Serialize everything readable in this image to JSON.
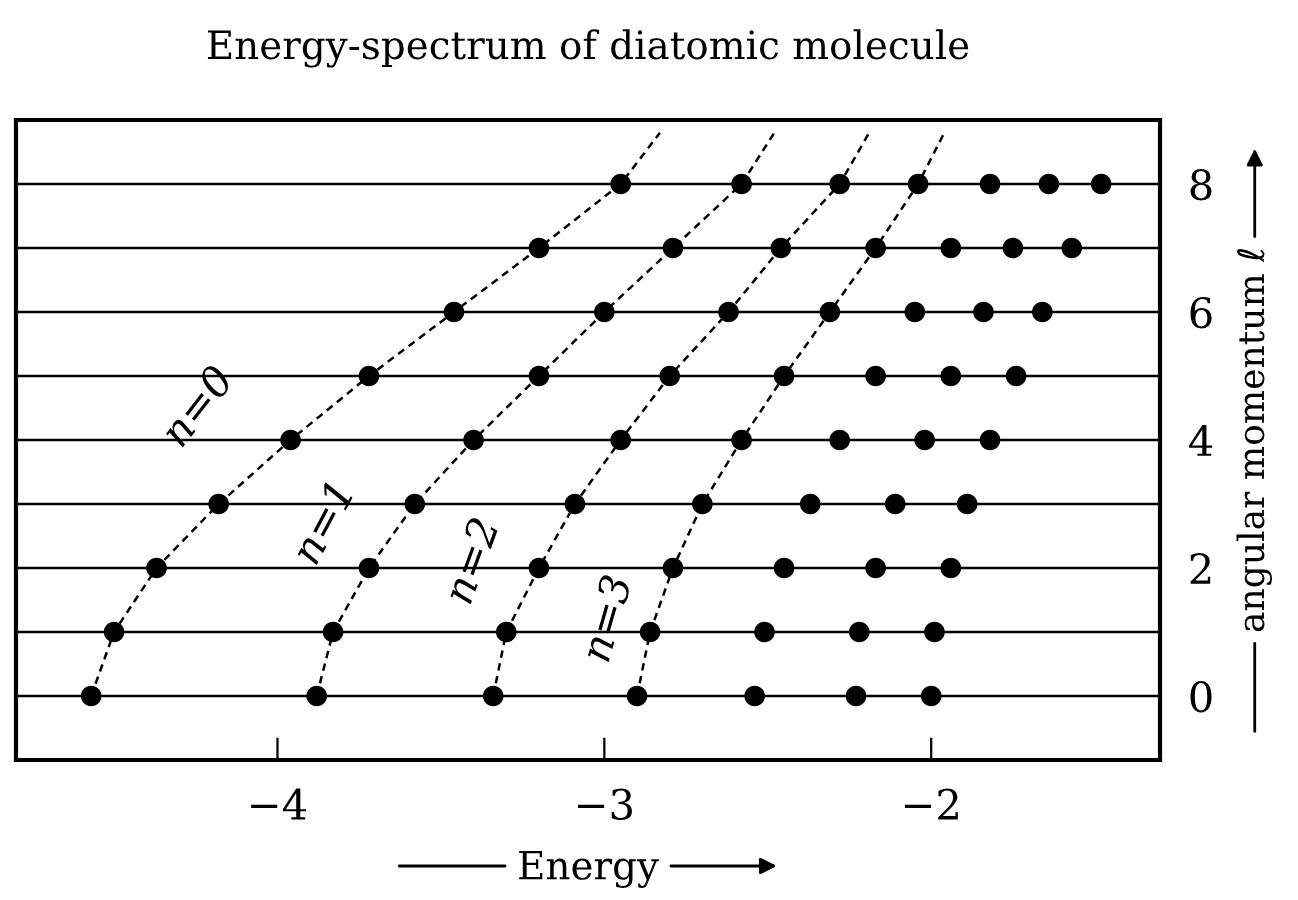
{
  "chart_data": {
    "type": "scatter",
    "title": "Energy-spectrum of diatomic molecule",
    "xlabel": "Energy",
    "ylabel": "angular momentum ℓ",
    "xlim": [
      -4.8,
      -1.3
    ],
    "ylim": [
      -1,
      9
    ],
    "xticks": [
      -4,
      -3,
      -2
    ],
    "yticks": [
      0,
      {
        "value": 1,
        "label": null
      },
      2,
      {
        "value": 3,
        "label": null
      },
      4,
      {
        "value": 5,
        "label": null
      },
      6,
      {
        "value": 7,
        "label": null
      },
      8
    ],
    "grid": "y",
    "legend": false,
    "series": [
      {
        "color": "#000000",
        "marker": "circle",
        "x": [
          -4.57,
          -3.88,
          -3.34,
          -2.9,
          -2.54,
          -2.23,
          -2.0,
          -4.5,
          -3.83,
          -3.3,
          -2.86,
          -2.51,
          -2.22,
          -1.99,
          -4.37,
          -3.72,
          -3.2,
          -2.79,
          -2.45,
          -2.17,
          -1.94,
          -4.18,
          -3.58,
          -3.09,
          -2.7,
          -2.37,
          -2.11,
          -1.89,
          -3.96,
          -3.4,
          -2.95,
          -2.58,
          -2.28,
          -2.02,
          -1.82,
          -3.72,
          -3.2,
          -2.8,
          -2.45,
          -2.17,
          -1.94,
          -1.74,
          -3.46,
          -3.0,
          -2.62,
          -2.31,
          -2.05,
          -1.84,
          -1.66,
          -3.2,
          -2.79,
          -2.46,
          -2.17,
          -1.94,
          -1.75,
          -1.57,
          -2.95,
          -2.58,
          -2.28,
          -2.04,
          -1.82,
          -1.64,
          -1.48
        ],
        "values": [
          0,
          0,
          0,
          0,
          0,
          0,
          0,
          1,
          1,
          1,
          1,
          1,
          1,
          1,
          2,
          2,
          2,
          2,
          2,
          2,
          2,
          3,
          3,
          3,
          3,
          3,
          3,
          3,
          4,
          4,
          4,
          4,
          4,
          4,
          4,
          5,
          5,
          5,
          5,
          5,
          5,
          5,
          6,
          6,
          6,
          6,
          6,
          6,
          6,
          7,
          7,
          7,
          7,
          7,
          7,
          7,
          8,
          8,
          8,
          8,
          8,
          8,
          8
        ]
      },
      {
        "type": "line",
        "name": "n=0",
        "color": "#000000",
        "line_style": "dashed",
        "marker": "none",
        "x": [
          -4.57,
          -4.5,
          -4.37,
          -4.18,
          -3.96,
          -3.72,
          -3.46,
          -3.2,
          -2.95,
          -2.83
        ],
        "values": [
          0,
          1,
          2,
          3,
          4,
          5,
          6,
          7,
          8,
          8.8
        ]
      },
      {
        "type": "line",
        "name": "n=1",
        "color": "#000000",
        "line_style": "dashed",
        "marker": "none",
        "x": [
          -3.88,
          -3.83,
          -3.72,
          -3.58,
          -3.4,
          -3.2,
          -3.0,
          -2.79,
          -2.58,
          -2.48
        ],
        "values": [
          0,
          1,
          2,
          3,
          4,
          5,
          6,
          7,
          8,
          8.8
        ]
      },
      {
        "type": "line",
        "name": "n=2",
        "color": "#000000",
        "line_style": "dashed",
        "marker": "none",
        "x": [
          -3.34,
          -3.3,
          -3.2,
          -3.09,
          -2.95,
          -2.8,
          -2.62,
          -2.46,
          -2.28,
          -2.19
        ],
        "values": [
          0,
          1,
          2,
          3,
          4,
          5,
          6,
          7,
          8,
          8.8
        ]
      },
      {
        "type": "line",
        "name": "n=3",
        "color": "#000000",
        "line_style": "dashed",
        "marker": "none",
        "x": [
          -2.9,
          -2.86,
          -2.79,
          -2.7,
          -2.58,
          -2.45,
          -2.31,
          -2.17,
          -2.04,
          -1.96
        ],
        "values": [
          0,
          1,
          2,
          3,
          4,
          5,
          6,
          7,
          8,
          8.8
        ]
      }
    ]
  }
}
